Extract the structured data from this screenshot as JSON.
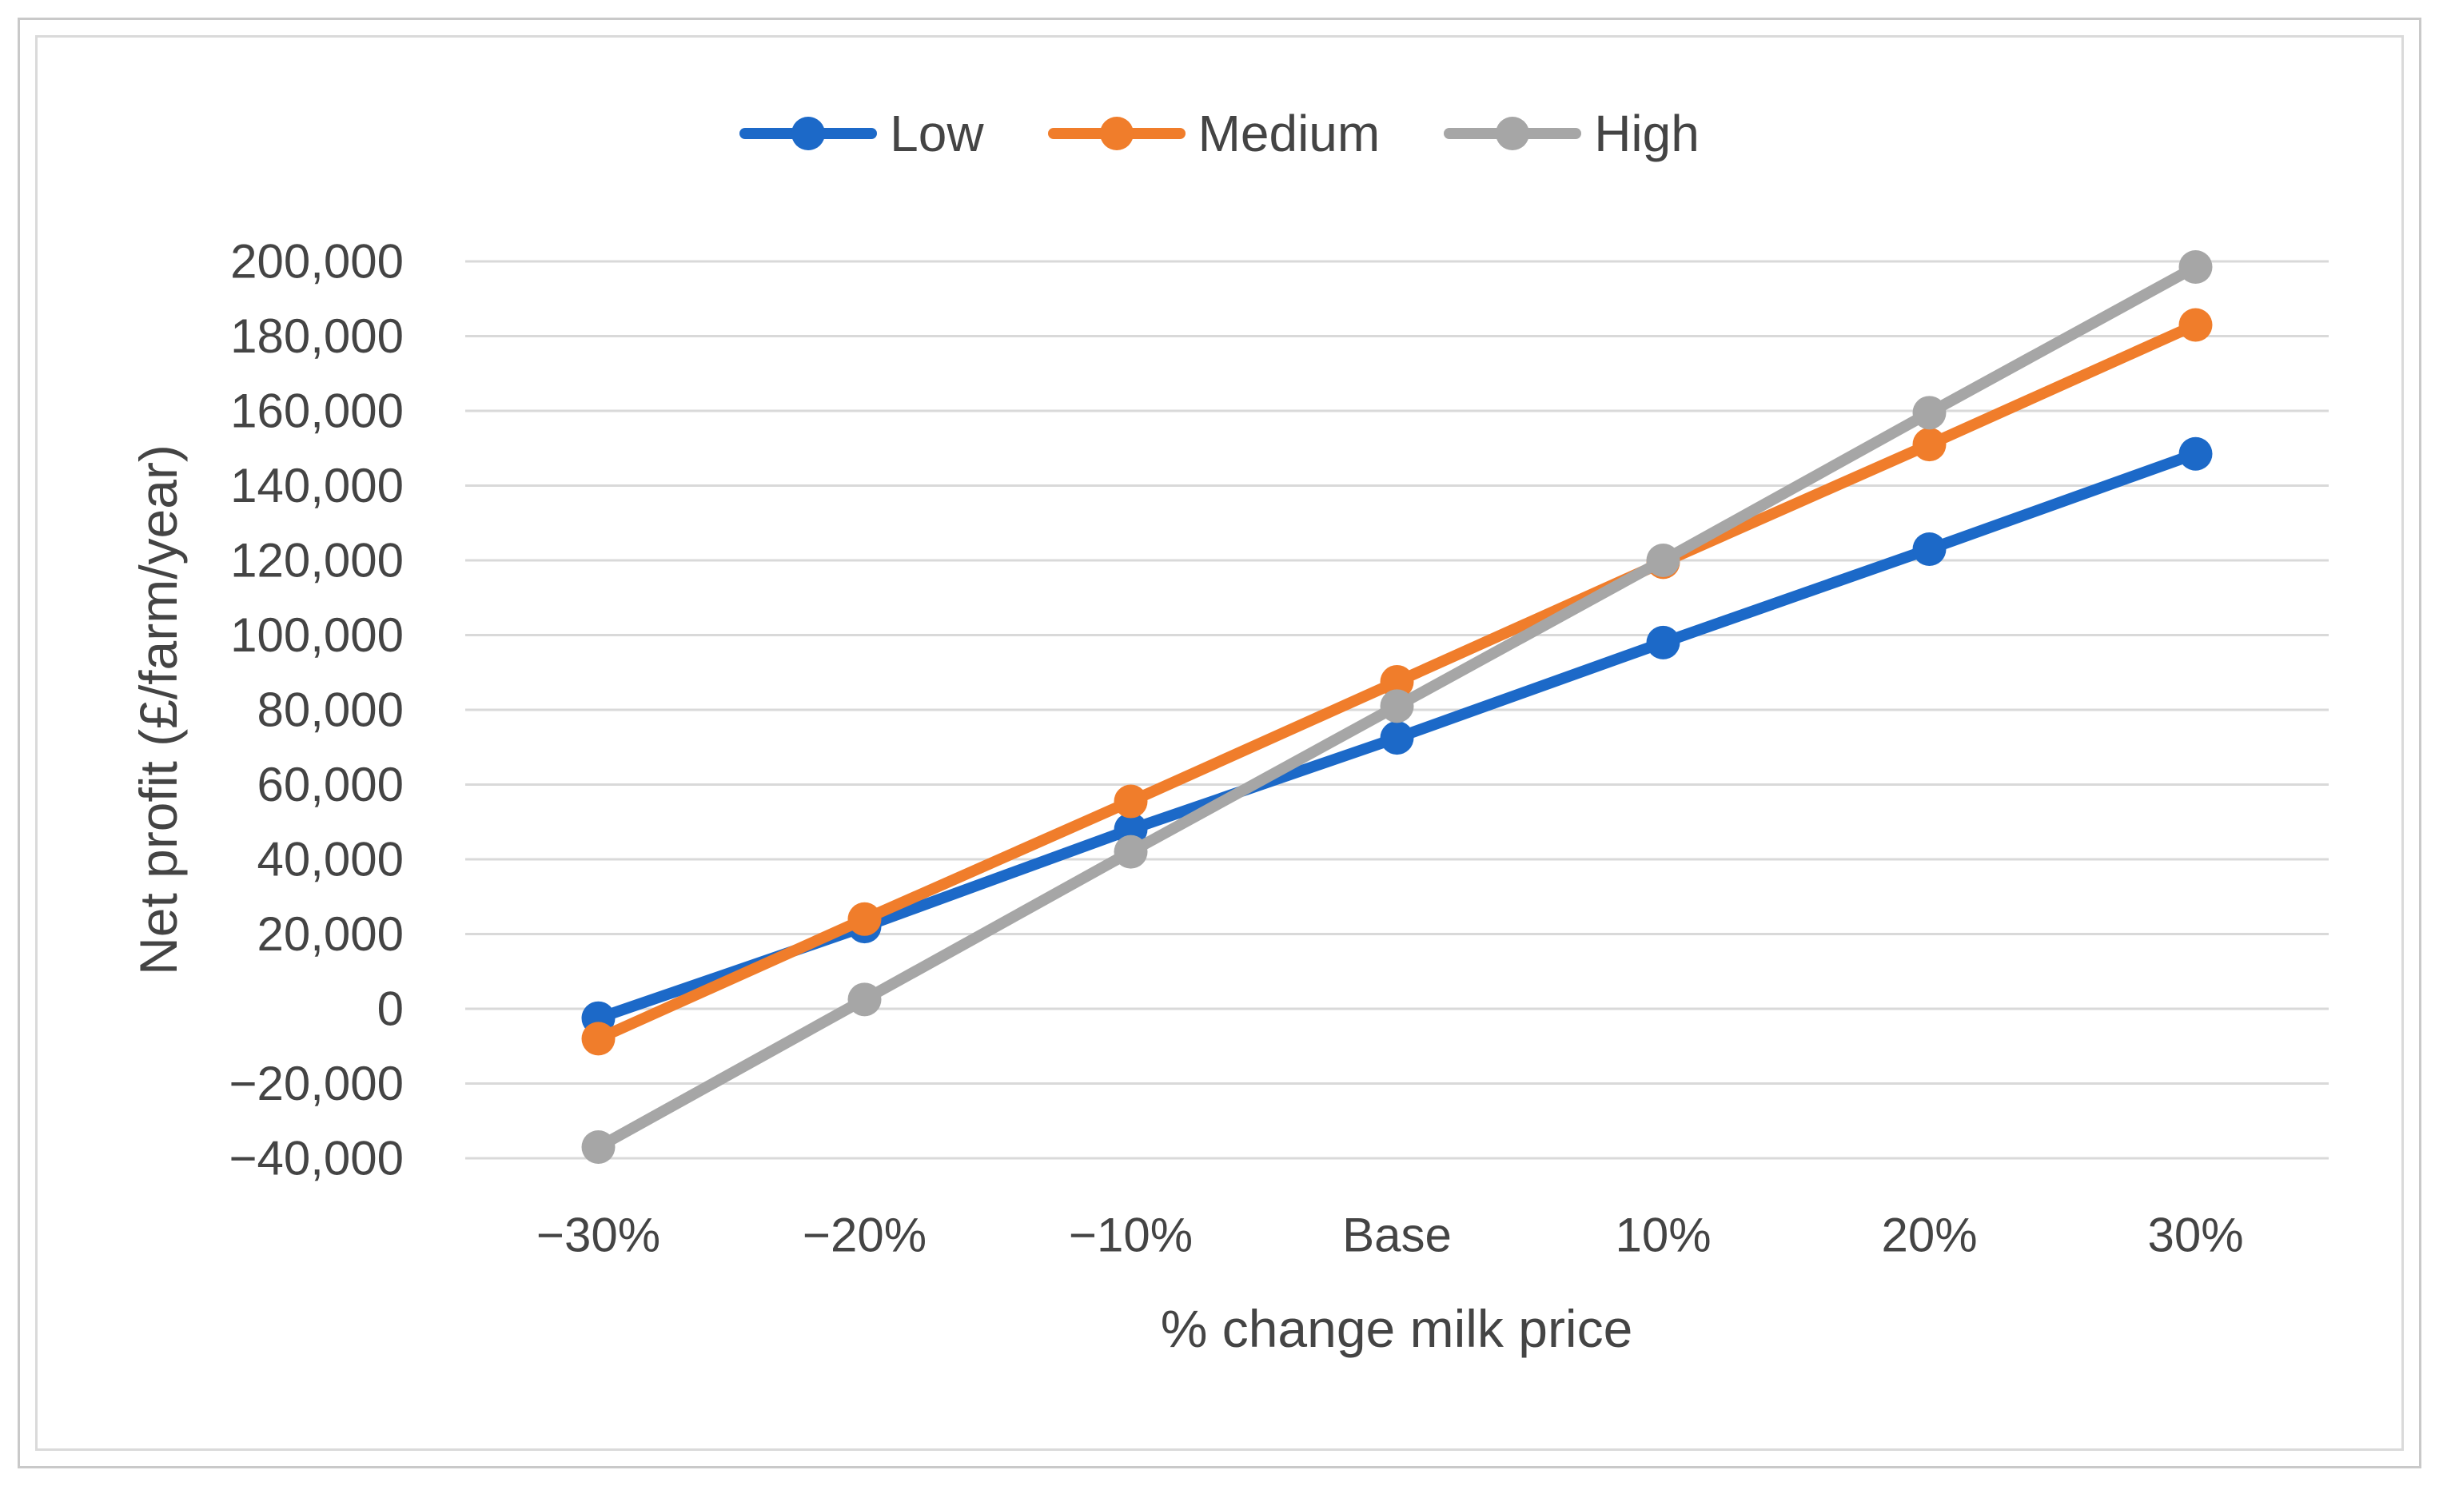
{
  "figure": {
    "background": "#ffffff",
    "outer_border_color": "#c9c9c9",
    "inner_border_color": "#dadada"
  },
  "legend": {
    "position": "top",
    "items": [
      {
        "label": "Low",
        "color": "#1c69c8"
      },
      {
        "label": "Medium",
        "color": "#f07d2b"
      },
      {
        "label": "High",
        "color": "#a6a6a6"
      }
    ]
  },
  "chart_data": {
    "type": "line",
    "title": "",
    "xlabel": "% change milk price",
    "ylabel": "Net profit (£/farm/year)",
    "categories": [
      "−30%",
      "−20%",
      "−10%",
      "Base",
      "10%",
      "20%",
      "30%"
    ],
    "series": [
      {
        "name": "Low",
        "color": "#1c69c8",
        "values": [
          -2500,
          22000,
          48000,
          72500,
          98000,
          123000,
          148500
        ]
      },
      {
        "name": "Medium",
        "color": "#f07d2b",
        "values": [
          -8000,
          24000,
          55500,
          87500,
          119500,
          151000,
          183000
        ]
      },
      {
        "name": "High",
        "color": "#a6a6a6",
        "values": [
          -37000,
          2500,
          42000,
          81000,
          120000,
          159500,
          198500
        ]
      }
    ],
    "ylim": [
      -40000,
      200000
    ],
    "y_tick_step": 20000,
    "y_tick_labels": [
      "200,000",
      "180,000",
      "160,000",
      "140,000",
      "120,000",
      "100,000",
      "80,000",
      "60,000",
      "40,000",
      "20,000",
      "0",
      "−20,000",
      "−40,000"
    ],
    "grid": true,
    "gridline_color": "#d9d9d9",
    "text_color": "#444444",
    "marker": "circle",
    "legend_position": "top"
  }
}
